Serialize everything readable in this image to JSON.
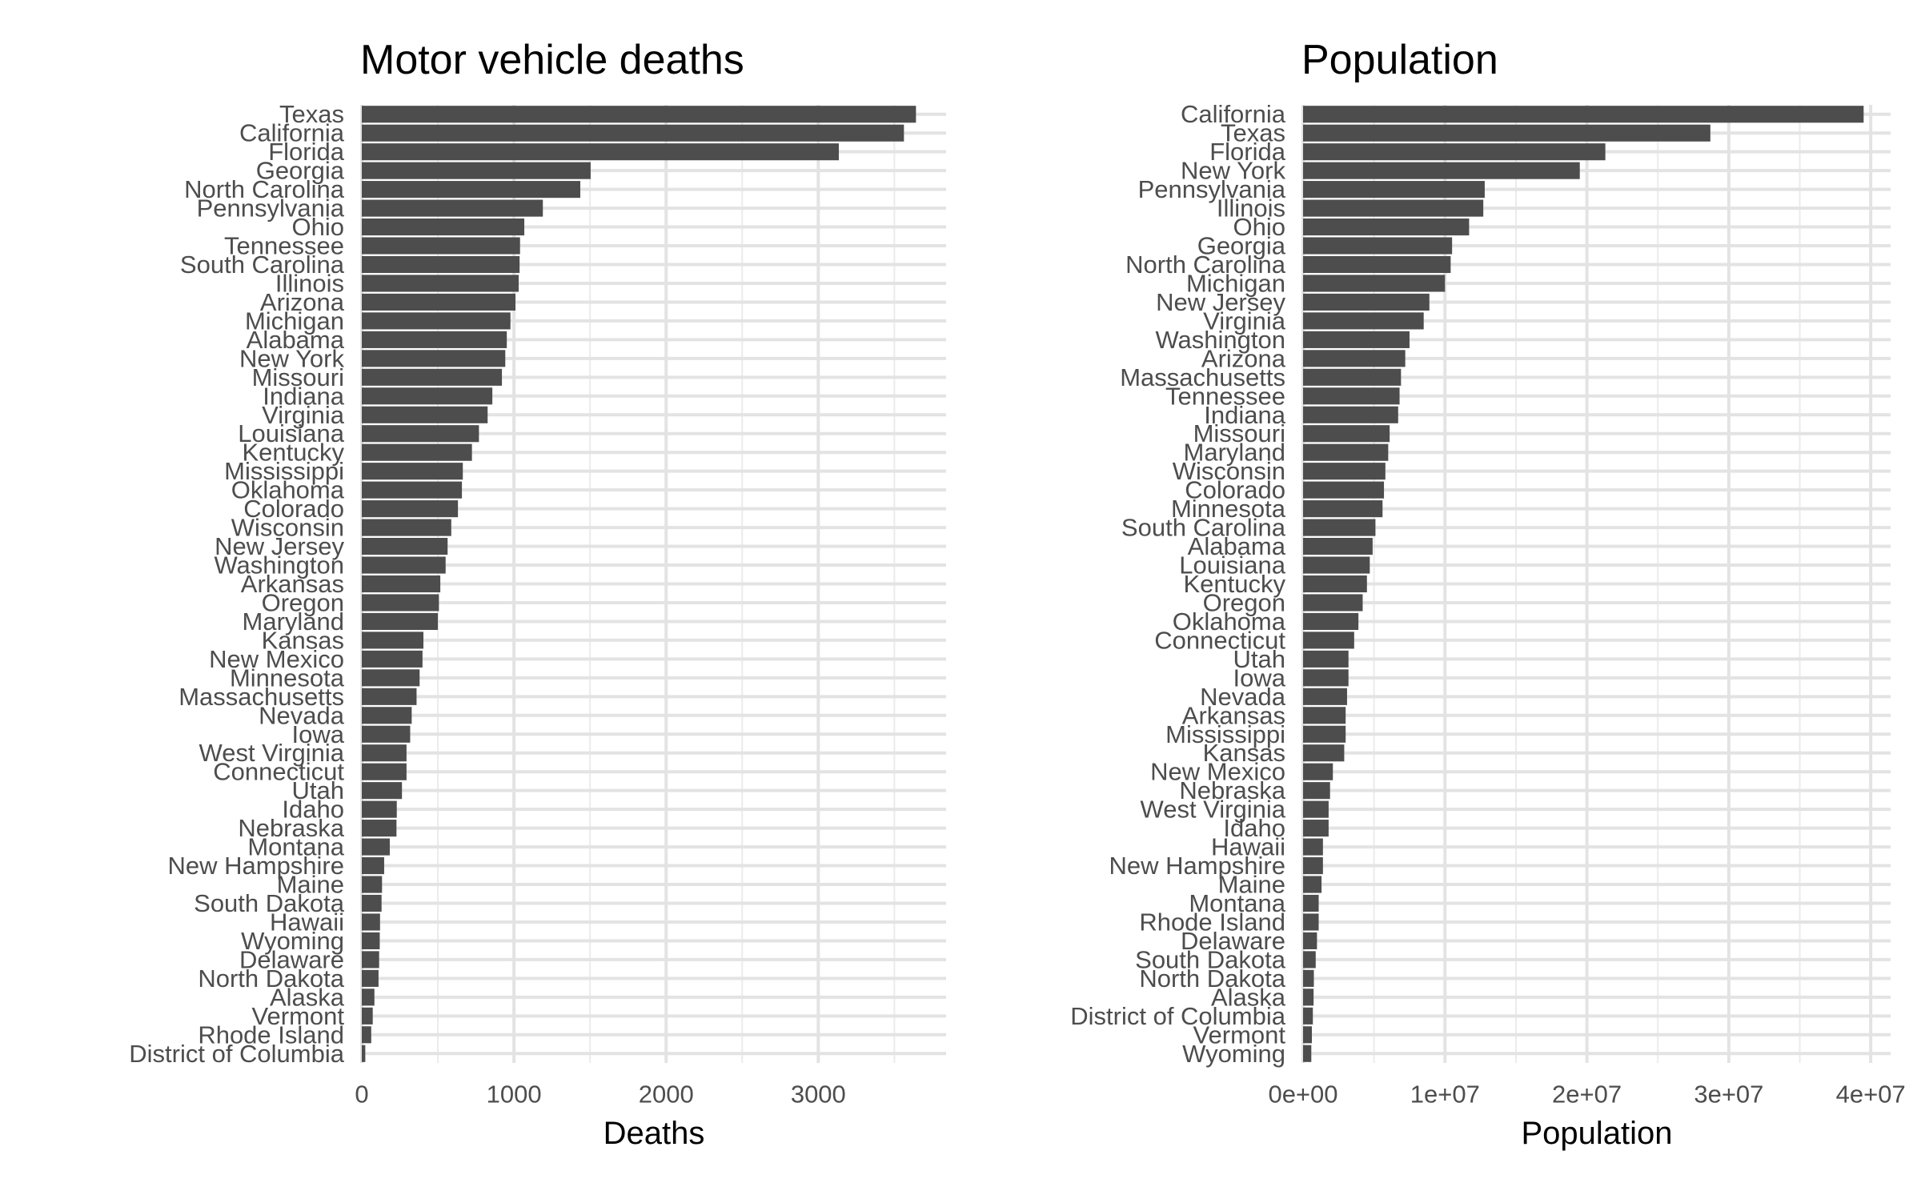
{
  "chart_data": [
    {
      "type": "bar",
      "orientation": "horizontal",
      "title": "Motor vehicle deaths",
      "xlabel": "Deaths",
      "ylabel": "",
      "xlim": [
        0,
        3840
      ],
      "xticks": [
        0,
        1000,
        2000,
        3000
      ],
      "xtick_labels": [
        "0",
        "1000",
        "2000",
        "3000"
      ],
      "grid": true,
      "bar_color": "#4d4d4d",
      "categories": [
        "Texas",
        "California",
        "Florida",
        "Georgia",
        "North Carolina",
        "Pennsylvania",
        "Ohio",
        "Tennessee",
        "South Carolina",
        "Illinois",
        "Arizona",
        "Michigan",
        "Alabama",
        "New York",
        "Missouri",
        "Indiana",
        "Virginia",
        "Louisiana",
        "Kentucky",
        "Mississippi",
        "Oklahoma",
        "Colorado",
        "Wisconsin",
        "New Jersey",
        "Washington",
        "Arkansas",
        "Oregon",
        "Maryland",
        "Kansas",
        "New Mexico",
        "Minnesota",
        "Massachusetts",
        "Nevada",
        "Iowa",
        "West Virginia",
        "Connecticut",
        "Utah",
        "Idaho",
        "Nebraska",
        "Montana",
        "New Hampshire",
        "Maine",
        "South Dakota",
        "Hawaii",
        "Wyoming",
        "Delaware",
        "North Dakota",
        "Alaska",
        "Vermont",
        "Rhode Island",
        "District of Columbia"
      ],
      "values": [
        3642,
        3563,
        3135,
        1504,
        1436,
        1190,
        1068,
        1040,
        1037,
        1031,
        1010,
        977,
        953,
        943,
        921,
        858,
        827,
        770,
        724,
        664,
        658,
        632,
        588,
        564,
        551,
        516,
        507,
        500,
        405,
        399,
        380,
        360,
        328,
        318,
        294,
        294,
        264,
        230,
        228,
        184,
        147,
        133,
        130,
        120,
        118,
        114,
        110,
        83,
        72,
        62,
        23
      ]
    },
    {
      "type": "bar",
      "orientation": "horizontal",
      "title": "Population",
      "xlabel": "Population",
      "ylabel": "",
      "xlim": [
        0,
        41400000
      ],
      "xticks": [
        0,
        10000000,
        20000000,
        30000000,
        40000000
      ],
      "xtick_labels": [
        "0e+00",
        "1e+07",
        "2e+07",
        "3e+07",
        "4e+07"
      ],
      "grid": true,
      "bar_color": "#4d4d4d",
      "categories": [
        "California",
        "Texas",
        "Florida",
        "New York",
        "Pennsylvania",
        "Illinois",
        "Ohio",
        "Georgia",
        "North Carolina",
        "Michigan",
        "New Jersey",
        "Virginia",
        "Washington",
        "Arizona",
        "Massachusetts",
        "Tennessee",
        "Indiana",
        "Missouri",
        "Maryland",
        "Wisconsin",
        "Colorado",
        "Minnesota",
        "South Carolina",
        "Alabama",
        "Louisiana",
        "Kentucky",
        "Oregon",
        "Oklahoma",
        "Connecticut",
        "Utah",
        "Iowa",
        "Nevada",
        "Arkansas",
        "Mississippi",
        "Kansas",
        "New Mexico",
        "Nebraska",
        "West Virginia",
        "Idaho",
        "Hawaii",
        "New Hampshire",
        "Maine",
        "Montana",
        "Rhode Island",
        "Delaware",
        "South Dakota",
        "North Dakota",
        "Alaska",
        "District of Columbia",
        "Vermont",
        "Wyoming"
      ],
      "values": [
        39500000,
        28700000,
        21300000,
        19500000,
        12800000,
        12700000,
        11700000,
        10500000,
        10400000,
        10000000,
        8900000,
        8500000,
        7500000,
        7200000,
        6900000,
        6800000,
        6700000,
        6100000,
        6000000,
        5800000,
        5700000,
        5600000,
        5100000,
        4900000,
        4700000,
        4500000,
        4200000,
        3900000,
        3600000,
        3200000,
        3200000,
        3100000,
        3000000,
        3000000,
        2900000,
        2100000,
        1900000,
        1800000,
        1800000,
        1400000,
        1400000,
        1300000,
        1100000,
        1100000,
        980000,
        890000,
        760000,
        740000,
        690000,
        620000,
        580000
      ]
    }
  ]
}
